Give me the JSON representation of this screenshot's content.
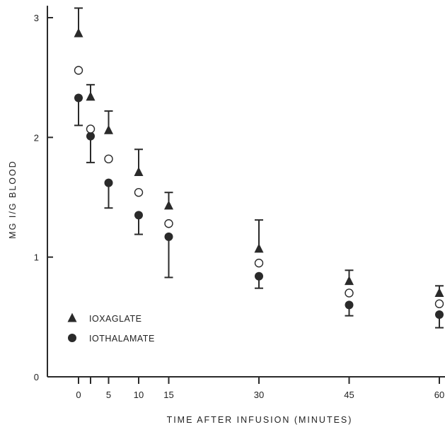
{
  "chart_data": {
    "type": "scatter",
    "xlabel": "TIME AFTER INFUSION (MINUTES)",
    "ylabel": "MG I/G BLOOD",
    "x_ticks": [
      0,
      5,
      10,
      15,
      30,
      45,
      60
    ],
    "y_ticks": [
      0,
      1,
      2,
      3
    ],
    "xlim": [
      -5,
      61
    ],
    "ylim": [
      0,
      3.1
    ],
    "grid": false,
    "legend_position": "bottom-left",
    "series": [
      {
        "name": "IOXAGLATE",
        "marker": "filled-triangle",
        "color": "#2a2a2a",
        "points": [
          {
            "x": 0,
            "y": 2.87,
            "err_hi": 3.08
          },
          {
            "x": 2,
            "y": 2.34,
            "err_hi": 2.44
          },
          {
            "x": 5,
            "y": 2.06,
            "err_hi": 2.22
          },
          {
            "x": 10,
            "y": 1.71,
            "err_hi": 1.9
          },
          {
            "x": 15,
            "y": 1.43,
            "err_hi": 1.54
          },
          {
            "x": 30,
            "y": 1.07,
            "err_hi": 1.31
          },
          {
            "x": 45,
            "y": 0.8,
            "err_hi": 0.89
          },
          {
            "x": 60,
            "y": 0.7,
            "err_hi": 0.76
          }
        ]
      },
      {
        "name": "IOTHALAMATE",
        "marker": "filled-circle",
        "color": "#2a2a2a",
        "points": [
          {
            "x": 0,
            "y": 2.33,
            "err_lo": 2.1
          },
          {
            "x": 2,
            "y": 2.01,
            "err_lo": 1.79
          },
          {
            "x": 5,
            "y": 1.62,
            "err_lo": 1.41
          },
          {
            "x": 10,
            "y": 1.35,
            "err_lo": 1.19
          },
          {
            "x": 15,
            "y": 1.17,
            "err_lo": 0.83
          },
          {
            "x": 30,
            "y": 0.84,
            "err_lo": 0.74
          },
          {
            "x": 45,
            "y": 0.6,
            "err_lo": 0.51
          },
          {
            "x": 60,
            "y": 0.52,
            "err_lo": 0.41
          }
        ]
      },
      {
        "name": "",
        "marker": "open-circle",
        "color": "#2a2a2a",
        "points": [
          {
            "x": 0,
            "y": 2.56
          },
          {
            "x": 2,
            "y": 2.07
          },
          {
            "x": 5,
            "y": 1.82
          },
          {
            "x": 10,
            "y": 1.54
          },
          {
            "x": 15,
            "y": 1.28
          },
          {
            "x": 30,
            "y": 0.95
          },
          {
            "x": 45,
            "y": 0.7
          },
          {
            "x": 60,
            "y": 0.61
          }
        ]
      }
    ]
  }
}
